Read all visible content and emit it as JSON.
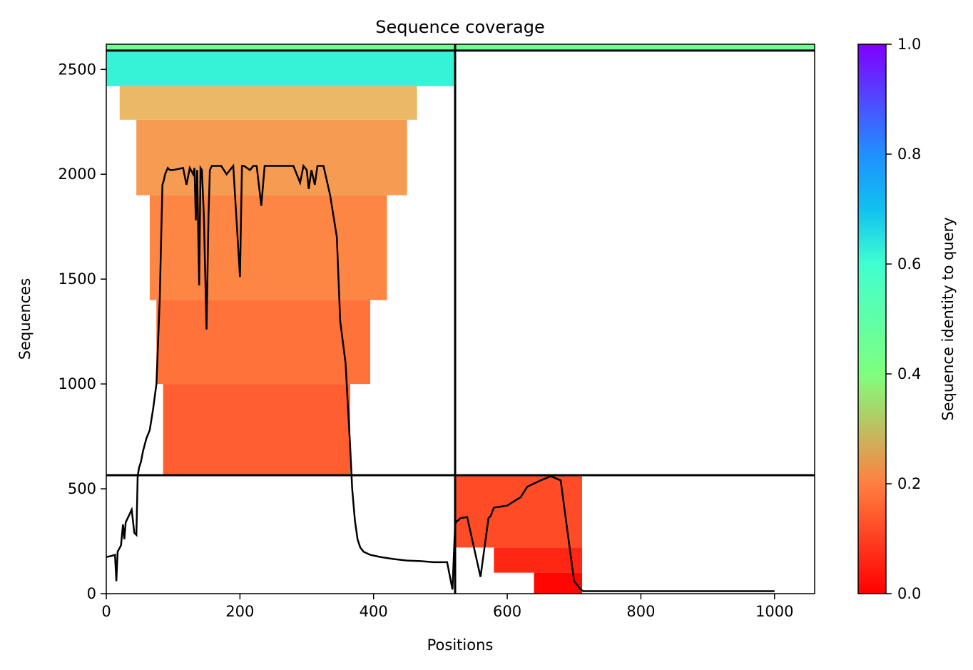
{
  "chart_data": {
    "type": "heatmap",
    "title": "Sequence coverage",
    "xlabel": "Positions",
    "ylabel": "Sequences",
    "colorbar_label": "Sequence identity to query",
    "colormap": "rainbow_r",
    "xlim": [
      0,
      1060
    ],
    "ylim": [
      0,
      2620
    ],
    "x_ticks": [
      0,
      200,
      400,
      600,
      800,
      1000
    ],
    "y_ticks": [
      0,
      500,
      1000,
      1500,
      2000,
      2500
    ],
    "colorbar_ticks": [
      0.0,
      0.2,
      0.4,
      0.6,
      0.8,
      1.0
    ],
    "colorbar_range": [
      0.0,
      1.0
    ],
    "separator_lines": {
      "x": [
        522
      ],
      "y": [
        565,
        2590
      ]
    },
    "blocks": [
      {
        "x_start": 0,
        "x_end": 522,
        "y_start": 2590,
        "y_end": 2620,
        "identity": 0.45
      },
      {
        "x_start": 522,
        "x_end": 1060,
        "y_start": 2590,
        "y_end": 2620,
        "identity": 0.45
      },
      {
        "x_start": 0,
        "x_end": 522,
        "y_start": 2420,
        "y_end": 2590,
        "identity": 0.62
      },
      {
        "x_start": 20,
        "x_end": 465,
        "y_start": 2260,
        "y_end": 2420,
        "identity": 0.28
      },
      {
        "x_start": 45,
        "x_end": 450,
        "y_start": 1900,
        "y_end": 2260,
        "identity": 0.24
      },
      {
        "x_start": 65,
        "x_end": 420,
        "y_start": 1400,
        "y_end": 1900,
        "identity": 0.21
      },
      {
        "x_start": 75,
        "x_end": 395,
        "y_start": 1000,
        "y_end": 1400,
        "identity": 0.18
      },
      {
        "x_start": 85,
        "x_end": 365,
        "y_start": 565,
        "y_end": 1000,
        "identity": 0.15
      },
      {
        "x_start": 522,
        "x_end": 712,
        "y_start": 220,
        "y_end": 565,
        "identity": 0.12
      },
      {
        "x_start": 580,
        "x_end": 712,
        "y_start": 100,
        "y_end": 220,
        "identity": 0.06
      },
      {
        "x_start": 640,
        "x_end": 712,
        "y_start": 0,
        "y_end": 100,
        "identity": 0.01
      }
    ],
    "coverage_line": {
      "x": [
        0,
        8,
        13,
        15,
        17,
        22,
        25,
        27,
        29,
        32,
        35,
        38,
        42,
        45,
        47,
        49,
        52,
        55,
        60,
        65,
        70,
        75,
        80,
        84,
        86,
        88,
        92,
        95,
        100,
        115,
        120,
        125,
        130,
        132,
        134,
        136,
        139,
        141,
        143,
        146,
        150,
        153,
        155,
        158,
        165,
        172,
        180,
        190,
        200,
        203,
        206,
        215,
        220,
        225,
        232,
        237,
        240,
        243,
        250,
        265,
        280,
        290,
        295,
        300,
        303,
        307,
        312,
        316,
        320,
        325,
        335,
        345,
        350,
        358,
        365,
        368,
        372,
        376,
        380,
        385,
        395,
        410,
        430,
        450,
        470,
        490,
        510,
        518,
        522,
        524,
        527,
        530,
        540,
        560,
        572,
        575,
        580,
        600,
        610,
        620,
        630,
        650,
        665,
        680,
        700,
        710,
        712,
        714,
        720,
        740,
        760,
        800,
        850,
        900,
        950,
        1000,
        1020,
        1060
      ],
      "y": [
        175,
        180,
        185,
        60,
        200,
        230,
        330,
        260,
        340,
        360,
        380,
        400,
        290,
        280,
        560,
        600,
        630,
        680,
        740,
        780,
        880,
        1000,
        1400,
        1950,
        1970,
        2000,
        2030,
        2020,
        2020,
        2030,
        1950,
        2030,
        2000,
        2030,
        1780,
        2020,
        1470,
        2030,
        2020,
        1800,
        1260,
        1800,
        2020,
        2040,
        2040,
        2040,
        2000,
        2040,
        1510,
        2040,
        2040,
        2020,
        2040,
        2040,
        1850,
        2040,
        2040,
        2040,
        2040,
        2040,
        2040,
        1960,
        2040,
        2020,
        1930,
        2020,
        1950,
        2040,
        2040,
        2040,
        1900,
        1700,
        1300,
        1100,
        700,
        500,
        350,
        260,
        220,
        200,
        185,
        175,
        165,
        158,
        155,
        150,
        150,
        20,
        330,
        345,
        350,
        360,
        365,
        80,
        360,
        370,
        410,
        420,
        440,
        460,
        510,
        540,
        560,
        540,
        60,
        20,
        15,
        12,
        12,
        12,
        12,
        12,
        12,
        12,
        12,
        12
      ]
    }
  }
}
